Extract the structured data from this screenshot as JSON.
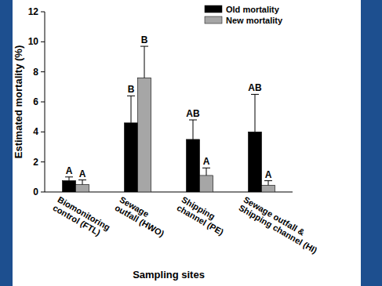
{
  "chart_data": {
    "type": "bar",
    "categories": [
      "Biomonitoring control (FTL)",
      "Sewage outfall (HWO)",
      "Shipping channel (PE)",
      "Sewage outfall & Shipping channel (HI)"
    ],
    "series": [
      {
        "name": "Old mortality",
        "color": "#000000",
        "values": [
          0.75,
          4.6,
          3.5,
          4.0
        ],
        "errors": [
          0.25,
          1.8,
          1.3,
          2.5
        ],
        "letters": [
          "A",
          "B",
          "AB",
          "AB"
        ]
      },
      {
        "name": "New mortality",
        "color": "#a6a6a6",
        "values": [
          0.5,
          7.6,
          1.1,
          0.45
        ],
        "errors": [
          0.3,
          2.1,
          0.5,
          0.3
        ],
        "letters": [
          "A",
          "B",
          "A",
          "A"
        ]
      }
    ],
    "x_label": "Sampling sites",
    "y_label": "Estimated mortality (%)",
    "ylim": [
      0,
      12
    ],
    "yticks": [
      0,
      2,
      4,
      6,
      8,
      10,
      12
    ],
    "legend": "upper right"
  }
}
